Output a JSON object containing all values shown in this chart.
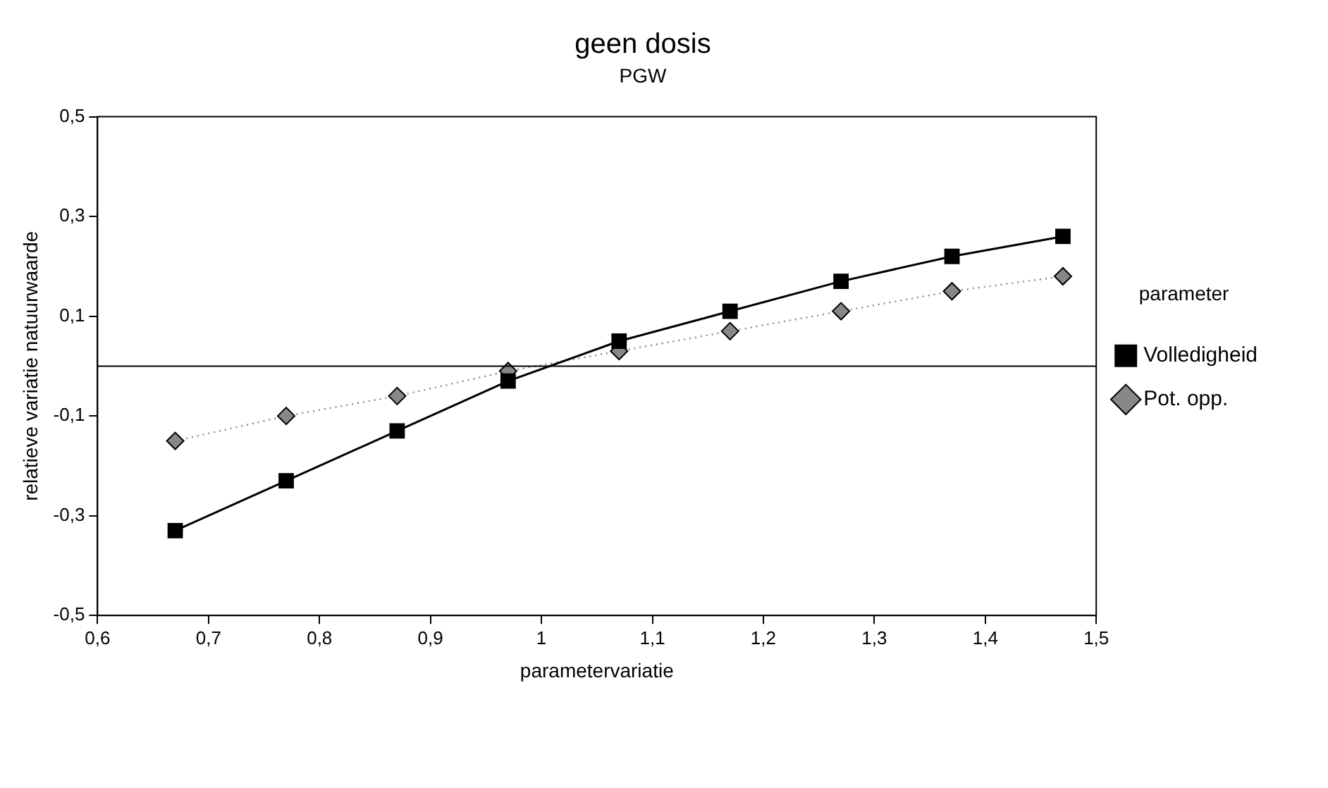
{
  "chart_data": {
    "type": "line",
    "title": "geen dosis",
    "subtitle": "PGW",
    "xlabel": "parametervariatie",
    "ylabel": "relatieve variatie natuurwaarde",
    "legend_title": "parameter",
    "x": [
      0.67,
      0.77,
      0.87,
      0.97,
      1.07,
      1.17,
      1.27,
      1.37,
      1.47
    ],
    "series": [
      {
        "name": "Volledigheid",
        "color": "#000000",
        "marker": "square",
        "line_style": "solid",
        "values": [
          -0.33,
          -0.23,
          -0.13,
          -0.03,
          0.05,
          0.11,
          0.17,
          0.22,
          0.26
        ]
      },
      {
        "name": "Pot. opp.",
        "color": "#888888",
        "marker": "diamond",
        "line_style": "dotted",
        "values": [
          -0.15,
          -0.1,
          -0.06,
          -0.01,
          0.03,
          0.07,
          0.11,
          0.15,
          0.18
        ]
      }
    ],
    "xlim": [
      0.6,
      1.5
    ],
    "xticks": [
      {
        "value": 0.6,
        "label": "0,6"
      },
      {
        "value": 0.7,
        "label": "0,7"
      },
      {
        "value": 0.8,
        "label": "0,8"
      },
      {
        "value": 0.9,
        "label": "0,9"
      },
      {
        "value": 1,
        "label": "1"
      },
      {
        "value": 1.1,
        "label": "1,1"
      },
      {
        "value": 1.2,
        "label": "1,2"
      },
      {
        "value": 1.3,
        "label": "1,3"
      },
      {
        "value": 1.4,
        "label": "1,4"
      },
      {
        "value": 1.5,
        "label": "1,5"
      }
    ],
    "ylim": [
      -0.5,
      0.5
    ],
    "yticks": [
      {
        "value": -0.5,
        "label": "-0,5"
      },
      {
        "value": -0.3,
        "label": "-0,3"
      },
      {
        "value": -0.1,
        "label": "-0,1"
      },
      {
        "value": 0.1,
        "label": "0,1"
      },
      {
        "value": 0.3,
        "label": "0,3"
      },
      {
        "value": 0.5,
        "label": "0,5"
      }
    ],
    "ref_lines": [
      {
        "axis": "y",
        "value": 0,
        "color": "#000000"
      }
    ],
    "grid": false,
    "legend": "right"
  }
}
